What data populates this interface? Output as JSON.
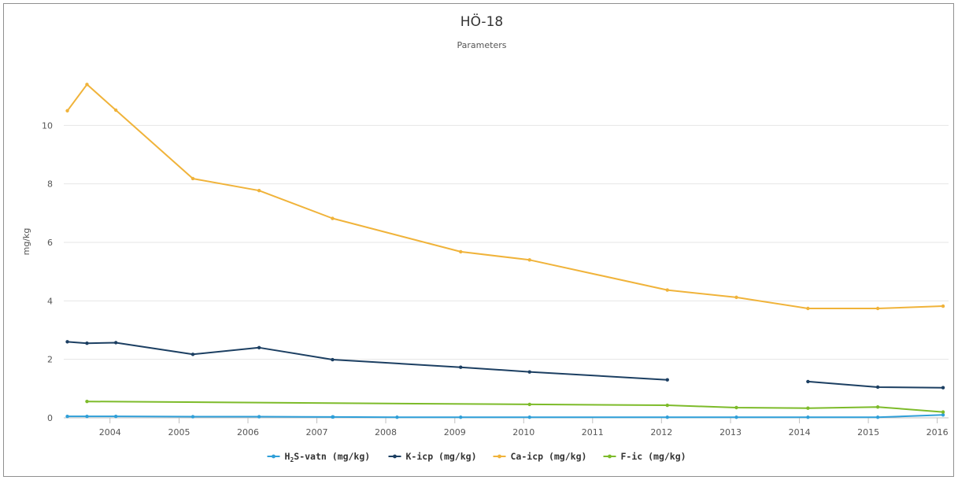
{
  "chart_data": {
    "type": "line",
    "title": "HÖ-18",
    "subtitle": "Parameters",
    "ylabel": "mg/kg",
    "xlabel": "",
    "ylim": [
      0,
      12
    ],
    "yticks": [
      0,
      2,
      4,
      6,
      8,
      10
    ],
    "xlim": [
      "2003-05-01",
      "2016-03-01"
    ],
    "xticks": [
      "2004",
      "2005",
      "2006",
      "2007",
      "2008",
      "2009",
      "2010",
      "2011",
      "2012",
      "2013",
      "2014",
      "2015",
      "2016"
    ],
    "grid": true,
    "legend_position": "bottom",
    "series": [
      {
        "name": "H₂S-vatn (mg/kg)",
        "legend_parts": [
          "H",
          "2",
          "S-vatn (mg/kg)"
        ],
        "color": "#2f9fd8",
        "points": [
          [
            "2003-05-20",
            0.05
          ],
          [
            "2003-09-01",
            0.05
          ],
          [
            "2004-02-01",
            0.05
          ],
          [
            "2005-03-15",
            0.04
          ],
          [
            "2006-03-01",
            0.04
          ],
          [
            "2007-03-25",
            0.03
          ],
          [
            "2007-03-28",
            0.03
          ],
          [
            "2008-03-01",
            0.02
          ],
          [
            "2009-02-01",
            0.02
          ],
          [
            "2010-02-01",
            0.02
          ],
          [
            "2012-02-01",
            0.02
          ],
          [
            "2013-02-01",
            0.02
          ],
          [
            "2014-02-15",
            0.02
          ],
          [
            "2015-02-20",
            0.02
          ],
          [
            "2016-02-01",
            0.1
          ]
        ]
      },
      {
        "name": "K-icp (mg/kg)",
        "color": "#1c3f62",
        "points": [
          [
            "2003-05-20",
            2.6
          ],
          [
            "2003-09-01",
            2.55
          ],
          [
            "2004-02-01",
            2.57
          ],
          [
            "2005-03-15",
            2.17
          ],
          [
            "2006-03-01",
            2.4
          ],
          [
            "2007-03-25",
            1.99
          ],
          [
            "2009-02-01",
            1.73
          ],
          [
            "2010-02-01",
            1.57
          ],
          [
            "2012-02-01",
            1.3
          ],
          null,
          [
            "2014-02-15",
            1.24
          ],
          [
            "2015-02-20",
            1.05
          ],
          [
            "2016-02-01",
            1.03
          ]
        ]
      },
      {
        "name": "Ca-icp (mg/kg)",
        "color": "#f0b33a",
        "points": [
          [
            "2003-05-20",
            10.5
          ],
          [
            "2003-09-01",
            11.4
          ],
          [
            "2004-02-01",
            10.52
          ],
          [
            "2005-03-15",
            8.18
          ],
          [
            "2006-03-01",
            7.77
          ],
          [
            "2007-03-25",
            6.82
          ],
          [
            "2009-02-01",
            5.68
          ],
          [
            "2010-02-01",
            5.4
          ],
          [
            "2012-02-01",
            4.37
          ],
          [
            "2013-02-01",
            4.12
          ],
          [
            "2014-02-15",
            3.74
          ],
          [
            "2015-02-20",
            3.74
          ],
          [
            "2016-02-01",
            3.82
          ]
        ]
      },
      {
        "name": "F-ic (mg/kg)",
        "color": "#7dbb2a",
        "points": [
          [
            "2003-09-01",
            0.56
          ],
          [
            "2010-02-01",
            0.46
          ],
          [
            "2012-02-01",
            0.43
          ],
          [
            "2013-02-01",
            0.35
          ],
          [
            "2014-02-15",
            0.33
          ],
          [
            "2015-02-20",
            0.37
          ],
          [
            "2016-02-01",
            0.2
          ]
        ]
      }
    ]
  }
}
